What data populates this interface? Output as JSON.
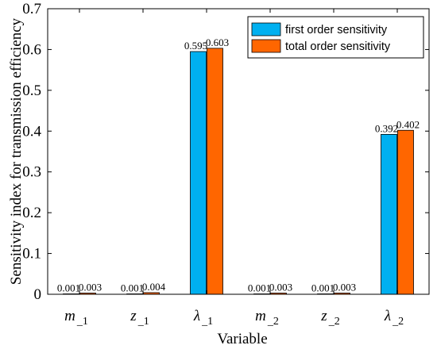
{
  "chart_data": {
    "type": "bar",
    "title": "",
    "xlabel": "Variable",
    "ylabel": "Sensitivity index for transmission efficiency",
    "ylim": [
      0,
      0.7
    ],
    "yticks": [
      0,
      0.1,
      0.2,
      0.3,
      0.4,
      0.5,
      0.6,
      0.7
    ],
    "ytick_labels": [
      "0",
      "0.1",
      "0.2",
      "0.3",
      "0.4",
      "0.5",
      "0.6",
      "0.7"
    ],
    "categories": [
      "m_1",
      "z_1",
      "λ_1",
      "m_2",
      "z_2",
      "λ_2"
    ],
    "category_labels": [
      {
        "symbol": "m",
        "subscript": "_1"
      },
      {
        "symbol": "z",
        "subscript": "_1"
      },
      {
        "symbol": "λ",
        "subscript": "_1"
      },
      {
        "symbol": "m",
        "subscript": "_2"
      },
      {
        "symbol": "z",
        "subscript": "_2"
      },
      {
        "symbol": "λ",
        "subscript": "_2"
      }
    ],
    "series": [
      {
        "name": "first order sensitivity",
        "color": "#00B0F0",
        "values": [
          0.001,
          0.001,
          0.595,
          0.001,
          0.001,
          0.392
        ],
        "labels": [
          "0.001",
          "0.001",
          "0.595",
          "0.001",
          "0.001",
          "0.392"
        ]
      },
      {
        "name": "total order sensitivity",
        "color": "#FF6600",
        "values": [
          0.003,
          0.004,
          0.603,
          0.003,
          0.003,
          0.402
        ],
        "labels": [
          "0.003",
          "0.004",
          "0.603",
          "0.003",
          "0.003",
          "0.402"
        ]
      }
    ],
    "legend_position": "top-right",
    "grid": false
  }
}
